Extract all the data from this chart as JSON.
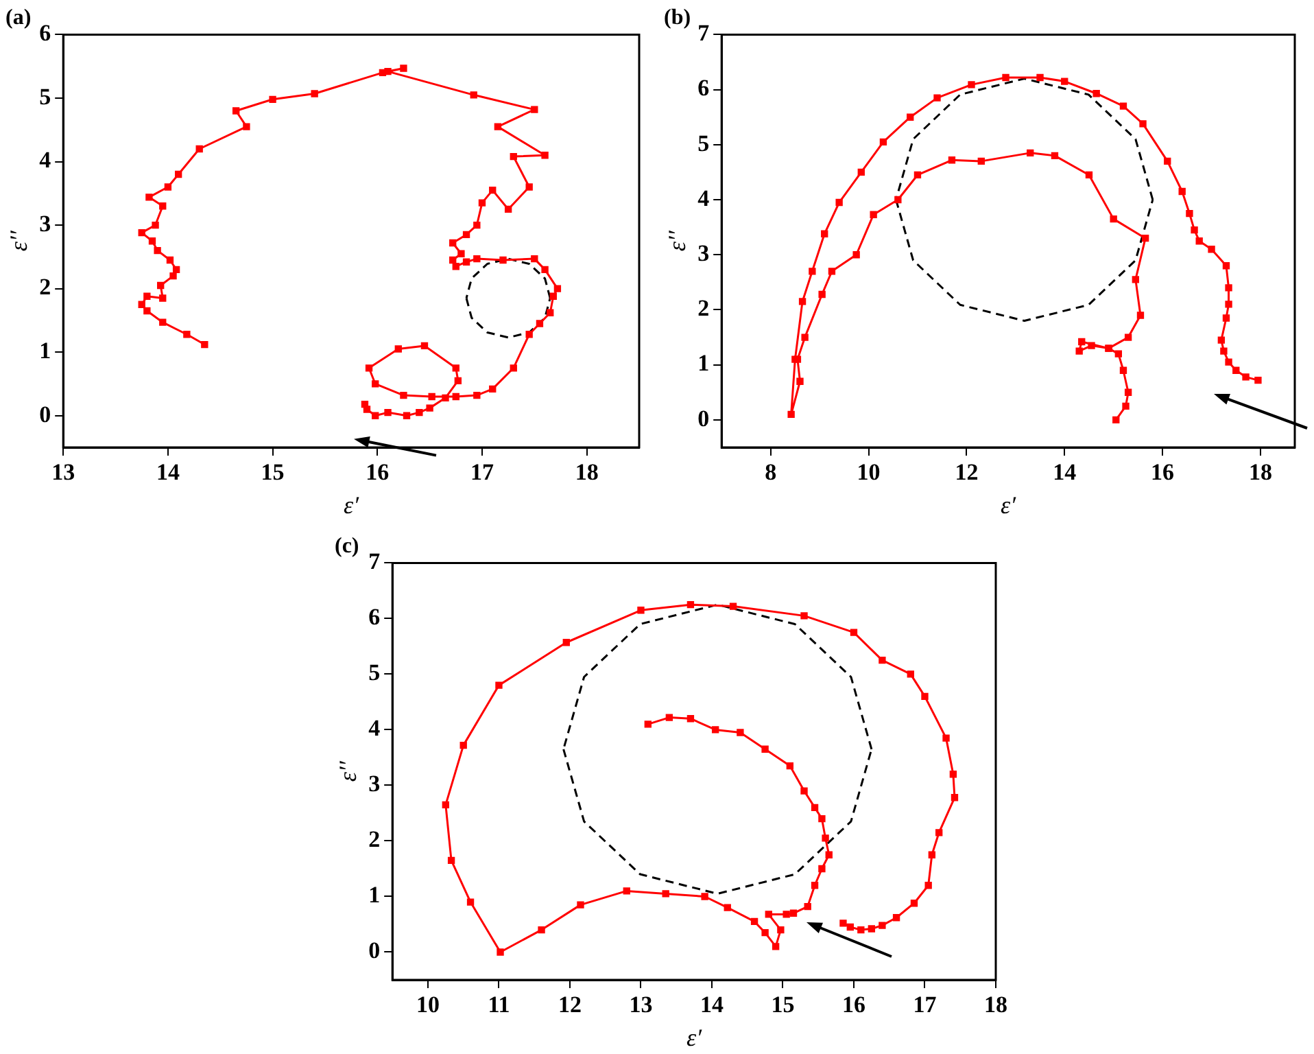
{
  "chart_data": [
    {
      "type": "line",
      "title": "(a)",
      "xlabel": "ε′",
      "ylabel": "ε′′",
      "xlim": [
        13,
        18.5
      ],
      "ylim": [
        -0.5,
        6
      ],
      "xticks": [
        13,
        14,
        15,
        16,
        17,
        18
      ],
      "yticks": [
        0,
        1,
        2,
        3,
        4,
        5,
        6
      ],
      "grid": false,
      "legend": false,
      "marker": "square",
      "line_style": "solid",
      "series": [
        {
          "color": "#ff0000",
          "x": [
            14.35,
            14.18,
            13.95,
            13.8,
            13.75,
            13.8,
            13.95,
            13.93,
            14.05,
            14.08,
            14.02,
            13.9,
            13.85,
            13.75,
            13.88,
            13.95,
            13.82,
            14.0,
            14.1,
            14.3,
            14.75,
            14.65,
            15.0,
            15.4,
            16.05,
            16.25,
            16.1,
            16.92,
            17.5,
            17.15,
            17.6,
            17.3,
            17.45,
            17.25,
            17.1,
            17.0,
            16.95,
            16.85,
            16.72,
            16.8,
            16.72,
            16.75,
            16.85,
            16.95,
            17.2,
            17.5,
            17.6,
            17.72,
            17.68,
            17.65,
            17.55,
            17.45,
            17.3,
            17.1,
            16.95,
            16.75,
            16.52,
            16.25,
            15.98,
            15.92,
            16.2,
            16.45,
            16.75,
            16.77,
            16.65,
            16.5,
            16.4,
            16.28,
            16.1,
            15.98,
            15.9,
            15.88
          ],
          "values": [
            1.12,
            1.28,
            1.47,
            1.65,
            1.75,
            1.88,
            1.85,
            2.05,
            2.2,
            2.3,
            2.45,
            2.6,
            2.75,
            2.88,
            3.0,
            3.3,
            3.44,
            3.6,
            3.8,
            4.2,
            4.55,
            4.8,
            4.98,
            5.07,
            5.4,
            5.47,
            5.42,
            5.05,
            4.82,
            4.55,
            4.1,
            4.08,
            3.6,
            3.25,
            3.55,
            3.35,
            3.0,
            2.85,
            2.72,
            2.55,
            2.45,
            2.35,
            2.42,
            2.47,
            2.45,
            2.47,
            2.3,
            2.0,
            1.88,
            1.62,
            1.45,
            1.28,
            0.75,
            0.42,
            0.32,
            0.3,
            0.3,
            0.32,
            0.5,
            0.75,
            1.05,
            1.1,
            0.75,
            0.55,
            0.28,
            0.12,
            0.05,
            0.0,
            0.05,
            0.0,
            0.1,
            0.18
          ]
        },
        {
          "type": "line",
          "color": "#000000",
          "marker": "none",
          "line_style": "dashed",
          "x": [
            17.65,
            17.6,
            17.45,
            17.25,
            17.05,
            16.9,
            16.85
          ],
          "values": [
            1.85,
            2.16,
            2.39,
            2.47,
            2.39,
            2.16,
            1.85
          ]
        },
        {
          "type": "line",
          "color": "#000000",
          "marker": "none",
          "line_style": "dashed",
          "x": [
            16.85,
            16.9,
            17.05,
            17.25,
            17.45,
            17.6,
            17.65
          ],
          "values": [
            1.85,
            1.54,
            1.31,
            1.23,
            1.31,
            1.54,
            1.85
          ]
        }
      ]
    },
    {
      "type": "line",
      "title": "(b)",
      "xlabel": "ε′",
      "ylabel": "ε′′",
      "xlim": [
        7,
        18.7
      ],
      "ylim": [
        -0.5,
        7
      ],
      "xticks": [
        8,
        10,
        12,
        14,
        16,
        18
      ],
      "yticks": [
        0,
        1,
        2,
        3,
        4,
        5,
        6,
        7
      ],
      "grid": false,
      "legend": false,
      "marker": "square",
      "line_style": "solid",
      "series": [
        {
          "color": "#ff0000",
          "x": [
            17.95,
            17.7,
            17.5,
            17.35,
            17.25,
            17.2,
            17.3,
            17.35,
            17.35,
            17.3,
            17.0,
            16.75,
            16.65,
            16.55,
            16.4,
            16.1,
            15.6,
            15.2,
            14.65,
            14.0,
            13.5,
            12.8,
            12.1,
            11.4,
            10.85,
            10.3,
            9.85,
            9.4,
            9.1,
            8.85,
            8.65,
            8.5,
            8.42,
            8.6,
            8.55,
            8.7,
            9.05,
            9.25,
            9.75,
            10.1,
            10.6,
            11.0,
            11.7,
            12.3,
            13.3,
            13.8,
            14.5,
            15.0,
            15.65,
            15.45,
            15.55,
            15.3,
            14.9,
            14.35,
            14.3,
            14.55,
            14.9,
            15.1,
            15.2,
            15.3,
            15.25,
            15.05
          ],
          "values": [
            0.72,
            0.78,
            0.9,
            1.05,
            1.25,
            1.45,
            1.85,
            2.1,
            2.4,
            2.8,
            3.1,
            3.25,
            3.45,
            3.75,
            4.15,
            4.7,
            5.38,
            5.7,
            5.93,
            6.15,
            6.22,
            6.22,
            6.09,
            5.85,
            5.5,
            5.05,
            4.5,
            3.95,
            3.38,
            2.7,
            2.15,
            1.1,
            0.1,
            0.7,
            1.1,
            1.5,
            2.28,
            2.7,
            3.0,
            3.73,
            4.0,
            4.45,
            4.72,
            4.7,
            4.85,
            4.8,
            4.45,
            3.65,
            3.3,
            2.55,
            1.9,
            1.5,
            1.3,
            1.42,
            1.25,
            1.35,
            1.3,
            1.2,
            0.9,
            0.5,
            0.25,
            0.0
          ]
        },
        {
          "type": "line",
          "color": "#000000",
          "marker": "none",
          "line_style": "dashed",
          "x": [
            15.8,
            15.45,
            14.49,
            13.18,
            11.87,
            10.91,
            10.56
          ],
          "values": [
            4.0,
            5.1,
            5.91,
            6.2,
            5.91,
            5.1,
            4.0
          ]
        },
        {
          "type": "line",
          "color": "#000000",
          "marker": "none",
          "line_style": "dashed",
          "x": [
            10.56,
            10.91,
            11.87,
            13.18,
            14.49,
            15.45,
            15.8
          ],
          "values": [
            4.0,
            2.9,
            2.09,
            1.8,
            2.09,
            2.9,
            4.0
          ]
        }
      ]
    },
    {
      "type": "line",
      "title": "(c)",
      "xlabel": "ε′",
      "ylabel": "ε′′",
      "xlim": [
        9.5,
        18
      ],
      "ylim": [
        -0.5,
        7
      ],
      "xticks": [
        10,
        11,
        12,
        13,
        14,
        15,
        16,
        17,
        18
      ],
      "yticks": [
        0,
        1,
        2,
        3,
        4,
        5,
        6,
        7
      ],
      "grid": false,
      "legend": false,
      "marker": "square",
      "line_style": "solid",
      "series": [
        {
          "color": "#ff0000",
          "x": [
            15.85,
            15.95,
            16.1,
            16.25,
            16.4,
            16.6,
            16.85,
            17.05,
            17.1,
            17.2,
            17.42,
            17.4,
            17.3,
            17.0,
            16.8,
            16.4,
            16.0,
            15.3,
            14.3,
            13.7,
            13.0,
            11.95,
            11.0,
            10.5,
            10.25,
            10.33,
            10.6,
            11.02,
            11.6,
            12.15,
            12.8,
            13.35,
            13.9,
            14.22,
            14.6,
            14.75,
            14.9,
            14.97,
            14.8,
            15.05,
            15.15,
            15.35,
            15.45,
            15.55,
            15.65,
            15.6,
            15.55,
            15.45,
            15.3,
            15.1,
            14.75,
            14.4,
            14.05,
            13.7,
            13.4,
            13.1
          ],
          "values": [
            0.52,
            0.45,
            0.4,
            0.42,
            0.48,
            0.62,
            0.88,
            1.2,
            1.75,
            2.15,
            2.78,
            3.2,
            3.85,
            4.6,
            5.0,
            5.25,
            5.75,
            6.05,
            6.22,
            6.25,
            6.15,
            5.57,
            4.8,
            3.72,
            2.65,
            1.65,
            0.9,
            0.0,
            0.4,
            0.85,
            1.1,
            1.05,
            1.0,
            0.8,
            0.55,
            0.35,
            0.1,
            0.4,
            0.68,
            0.68,
            0.7,
            0.82,
            1.2,
            1.5,
            1.75,
            2.05,
            2.4,
            2.6,
            2.9,
            3.35,
            3.65,
            3.95,
            4.0,
            4.2,
            4.22,
            4.1
          ]
        },
        {
          "type": "line",
          "color": "#000000",
          "marker": "none",
          "line_style": "dashed",
          "x": [
            16.25,
            15.96,
            15.17,
            14.08,
            12.99,
            12.2,
            11.91
          ],
          "values": [
            3.65,
            4.95,
            5.9,
            6.25,
            5.9,
            4.95,
            3.65
          ]
        },
        {
          "type": "line",
          "color": "#000000",
          "marker": "none",
          "line_style": "dashed",
          "x": [
            11.91,
            12.2,
            12.99,
            14.08,
            15.17,
            15.96,
            16.25
          ],
          "values": [
            3.65,
            2.35,
            1.4,
            1.05,
            1.4,
            2.35,
            3.65
          ]
        }
      ]
    }
  ]
}
